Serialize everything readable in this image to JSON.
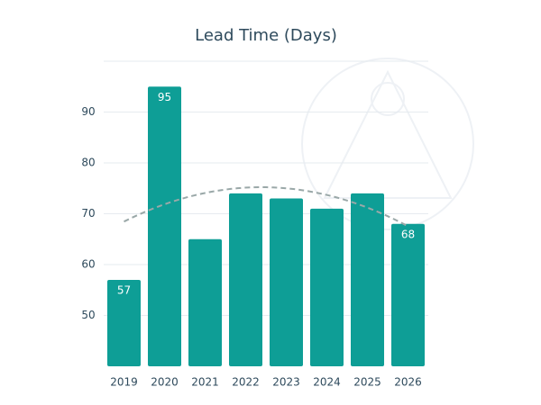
{
  "chart_data": {
    "type": "bar",
    "title": "Lead Time (Days)",
    "categories": [
      "2019",
      "2020",
      "2021",
      "2022",
      "2023",
      "2024",
      "2025",
      "2026"
    ],
    "values": [
      57,
      95,
      65,
      74,
      73,
      71,
      74,
      68
    ],
    "data_labels": [
      true,
      true,
      false,
      false,
      false,
      false,
      false,
      true
    ],
    "color": "#0e9e96",
    "ylim": [
      40,
      100
    ],
    "yticks": [
      50,
      60,
      70,
      80,
      90
    ],
    "grid": true,
    "trendline": "quadratic",
    "trendline_color": "#9aa8a8"
  }
}
